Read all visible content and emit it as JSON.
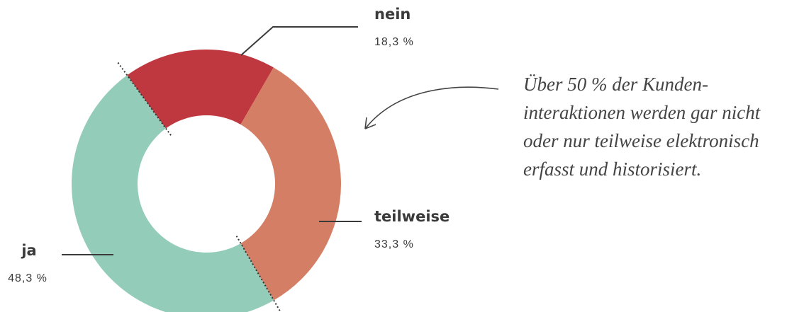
{
  "chart_data": {
    "type": "pie",
    "donut": true,
    "categories": [
      "nein",
      "teilweise",
      "ja"
    ],
    "values": [
      18.3,
      33.3,
      48.3
    ],
    "value_labels": [
      "18,3 %",
      "33,3 %",
      "48,3 %"
    ],
    "colors": [
      "#c0383f",
      "#d57e66",
      "#93cdb9"
    ],
    "annotation": [
      "Über 50 % der Kunden-",
      "interaktionen werden gar nicht",
      "oder nur teilweise elektronisch",
      "erfasst und historisiert."
    ]
  }
}
